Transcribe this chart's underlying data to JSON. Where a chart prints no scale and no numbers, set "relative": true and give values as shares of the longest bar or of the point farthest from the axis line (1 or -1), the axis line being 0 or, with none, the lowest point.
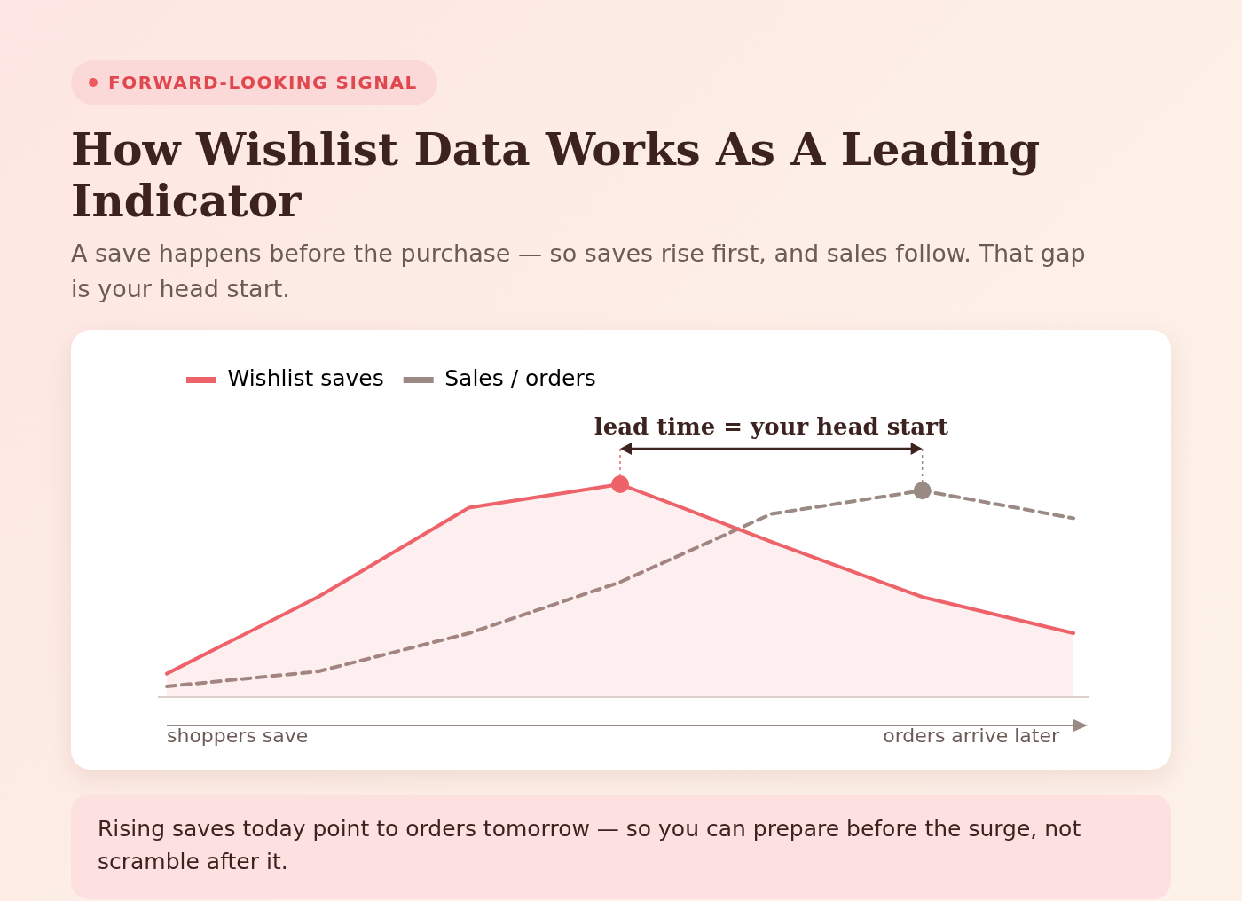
{
  "chart_data": {
    "type": "line",
    "title": "How Wishlist Data Works As A Leading Indicator",
    "subtitle": "A save happens before the purchase — so saves rise first, and sales follow. That gap is your head start.",
    "categories": [
      null,
      null,
      null,
      null,
      null,
      null,
      null
    ],
    "relative": true,
    "series": [
      {
        "name": "Wishlist saves",
        "type": "area",
        "color": "#ee6369",
        "line_style": "solid",
        "values": [
          0.11,
          0.47,
          0.89,
          1,
          0.73,
          0.47,
          0.3
        ]
      },
      {
        "name": "Sales / orders",
        "type": "line",
        "color": "#9a8a83",
        "line_style": "dashed",
        "values": [
          0.05,
          0.12,
          0.3,
          0.54,
          0.86,
          0.97,
          0.84
        ]
      }
    ],
    "legend": "top left",
    "marker": "none",
    "annotations": [
      "FORWARD-LOOKING SIGNAL",
      "lead time = your head start",
      "shoppers save",
      "orders arrive later",
      "Rising saves today point to orders tomorrow — so you can prepare before the surge, not scramble after it."
    ]
  }
}
